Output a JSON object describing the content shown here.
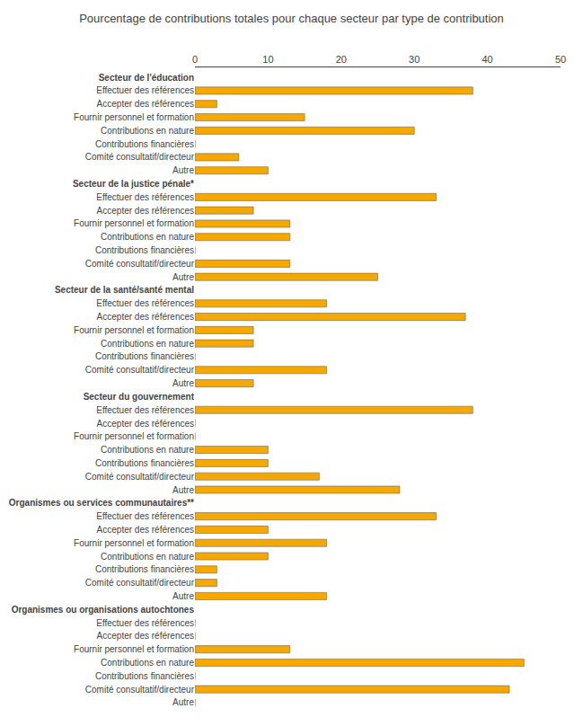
{
  "chart_data": {
    "type": "bar",
    "orientation": "horizontal",
    "title": "Pourcentage de contributions totales pour chaque secteur par type de contribution",
    "categories": [
      "Secteur de l'éducation",
      "Effectuer des références",
      "Accepter des références",
      "Fournir personnel et formation",
      "Contributions en nature",
      "Contributions financières",
      "Comité consultatif/directeur",
      "Autre",
      "Secteur de la justice pénale*",
      "Effectuer des références",
      "Accepter des références",
      "Fournir personnel et formation",
      "Contributions en nature",
      "Contributions financières",
      "Comité consultatif/directeur",
      "Autre",
      "Secteur de la santé/santé mental",
      "Effectuer des références",
      "Accepter des références",
      "Fournir personnel et formation",
      "Contributions en nature",
      "Contributions financières",
      "Comité consultatif/directeur",
      "Autre",
      "Secteur du gouvernement",
      "Effectuer des références",
      "Accepter des références",
      "Fournir personnel et formation",
      "Contributions en nature",
      "Contributions financières",
      "Comité consultatif/directeur",
      "Autre",
      "Organismes ou services communautaires**",
      "Effectuer des références",
      "Accepter des références",
      "Fournir personnel et formation",
      "Contributions en nature",
      "Contributions financières",
      "Comité consultatif/directeur",
      "Autre",
      "Organismes ou organisations autochtones",
      "Effectuer des références",
      "Accepter des références",
      "Fournir personnel et formation",
      "Contributions en nature",
      "Contributions financières",
      "Comité consultatif/directeur",
      "Autre"
    ],
    "values": [
      null,
      38,
      3,
      15,
      30,
      0,
      6,
      10,
      null,
      33,
      8,
      13,
      13,
      0,
      13,
      25,
      null,
      18,
      37,
      8,
      8,
      0,
      18,
      8,
      null,
      38,
      0,
      0,
      10,
      10,
      17,
      28,
      null,
      33,
      10,
      18,
      10,
      3,
      3,
      18,
      null,
      0,
      0,
      13,
      45,
      0,
      43,
      0
    ],
    "color": "#F5A800",
    "xlim": [
      0,
      50
    ],
    "xticks": [
      0,
      10,
      20,
      30,
      40,
      50
    ],
    "grid": false
  }
}
